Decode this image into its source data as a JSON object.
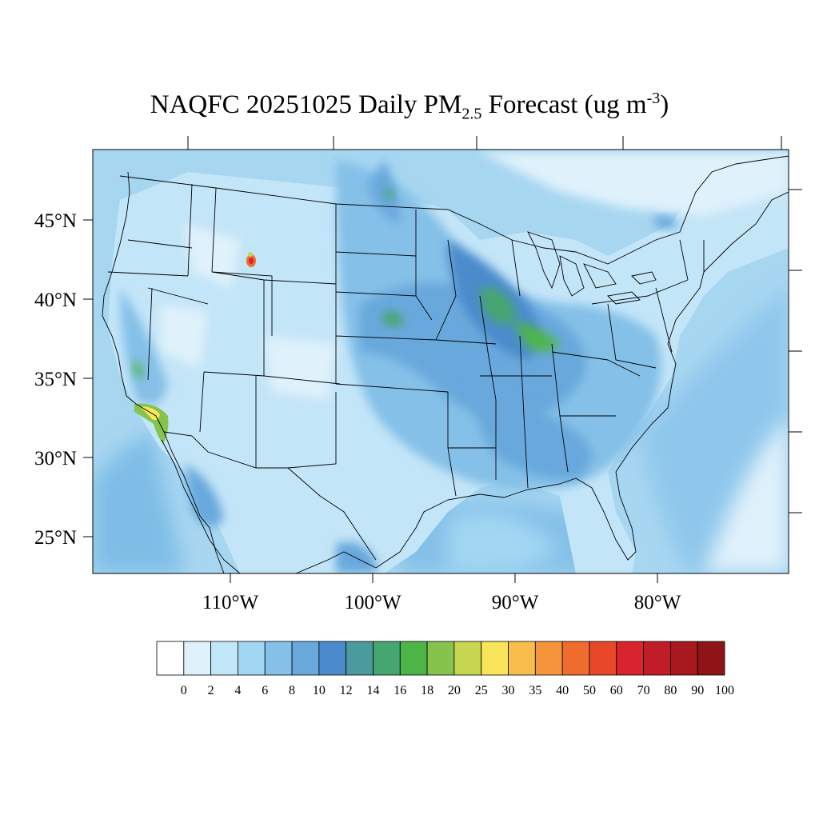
{
  "title": {
    "prefix": "NAQFC 20251025 Daily PM",
    "subscript": "2.5",
    "middle": " Forecast (ug m",
    "superscript": "-3",
    "suffix": ")"
  },
  "lat_labels": [
    "45°N",
    "40°N",
    "35°N",
    "30°N",
    "25°N"
  ],
  "lon_labels": [
    "110°W",
    "100°W",
    "90°W",
    "80°W"
  ],
  "colorbar": {
    "levels": [
      "0",
      "2",
      "4",
      "6",
      "8",
      "10",
      "12",
      "14",
      "16",
      "18",
      "20",
      "25",
      "30",
      "35",
      "40",
      "50",
      "60",
      "70",
      "80",
      "90",
      "100"
    ],
    "colors": [
      "#ffffff",
      "#dff1fb",
      "#c1e6f8",
      "#a2d7f3",
      "#84c0e8",
      "#68a8dc",
      "#4b8bcc",
      "#4a9a9e",
      "#46a66f",
      "#4db548",
      "#86c34d",
      "#c7d651",
      "#f8e55a",
      "#f8bd4b",
      "#f5953b",
      "#f06b2e",
      "#e7482a",
      "#d9232d",
      "#c01d28",
      "#a7191f",
      "#8e1418"
    ]
  },
  "legend_colors": {
    "ocean": "#a7d6f1",
    "land_base": "#c3e5f8",
    "outline": "#000000"
  }
}
